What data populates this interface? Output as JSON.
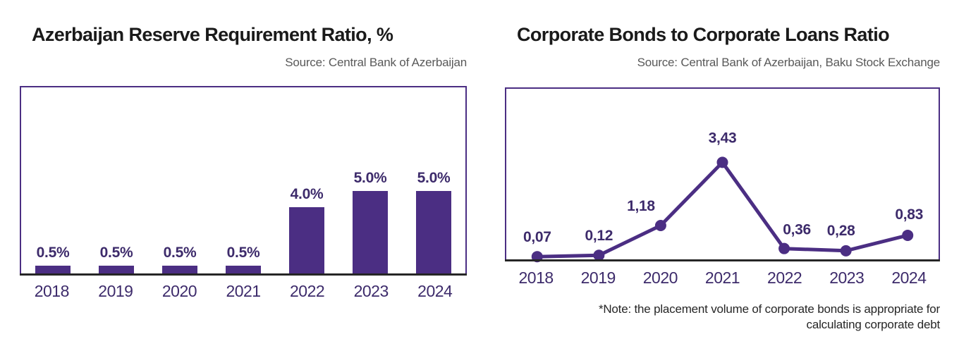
{
  "page": {
    "background": "#ffffff"
  },
  "colors": {
    "accent_purple": "#4b2e83",
    "label_purple": "#3d2b6b",
    "title_black": "#1a1a1a",
    "source_gray": "#595959",
    "axis_dark": "#262626"
  },
  "charts": [
    {
      "title": "Azerbaijan Reserve Requirement Ratio, %",
      "source": "Source: Central Bank of Azerbaijan",
      "chart_data": {
        "type": "bar",
        "categories": [
          "2018",
          "2019",
          "2020",
          "2021",
          "2022",
          "2023",
          "2024"
        ],
        "values": [
          0.5,
          0.5,
          0.5,
          0.5,
          4.0,
          5.0,
          5.0
        ],
        "value_labels": [
          "0.5%",
          "0.5%",
          "0.5%",
          "0.5%",
          "4.0%",
          "5.0%",
          "5.0%"
        ],
        "unit": "%",
        "ylim": [
          0,
          11.2
        ],
        "grid": false,
        "legend": false,
        "bar_color": "#4b2e83",
        "label_color": "#3d2b6b",
        "axis_color": "#262626",
        "border_color": "#4b2e83"
      }
    },
    {
      "title": "Corporate Bonds to Corporate Loans Ratio",
      "source": "Source: Central Bank of Azerbaijan, Baku Stock Exchange",
      "note": "*Note: the placement volume of corporate bonds is appropriate for calculating corporate debt",
      "chart_data": {
        "type": "line",
        "categories": [
          "2018",
          "2019",
          "2020",
          "2021",
          "2022",
          "2023",
          "2024"
        ],
        "values": [
          0.07,
          0.12,
          1.18,
          3.43,
          0.36,
          0.28,
          0.83
        ],
        "value_labels": [
          "0,07",
          "0,12",
          "1,18",
          "3,43",
          "0,36",
          "0,28",
          "0,83"
        ],
        "ylim": [
          0,
          6.0
        ],
        "grid": false,
        "legend": false,
        "line_color": "#4b2e83",
        "marker_color": "#4b2e83",
        "label_color": "#3d2b6b",
        "axis_color": "#262626",
        "border_color": "#4b2e83",
        "label_dx": [
          0,
          0,
          -28,
          0,
          18,
          -7,
          2
        ],
        "label_dy": [
          -13,
          -13,
          -13,
          -20,
          -12,
          -14,
          -15
        ]
      }
    }
  ]
}
